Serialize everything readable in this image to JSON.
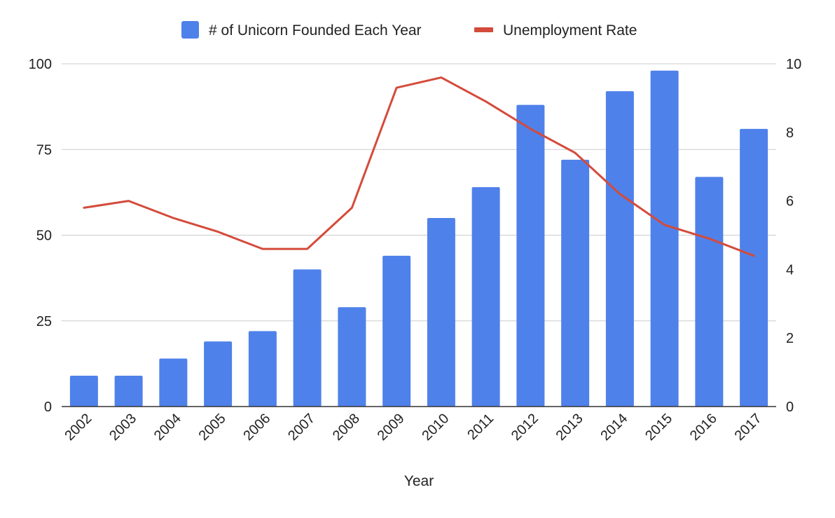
{
  "chart_data": {
    "type": "bar",
    "title": "",
    "xlabel": "Year",
    "ylabel": "",
    "ylabel_right": "",
    "categories": [
      "2002",
      "2003",
      "2004",
      "2005",
      "2006",
      "2007",
      "2008",
      "2009",
      "2010",
      "2011",
      "2012",
      "2013",
      "2014",
      "2015",
      "2016",
      "2017"
    ],
    "series": [
      {
        "name": "# of Unicorn Founded Each Year",
        "type": "bar",
        "axis": "left",
        "color": "#4f81ea",
        "values": [
          9,
          9,
          14,
          19,
          22,
          40,
          29,
          44,
          55,
          64,
          88,
          72,
          92,
          98,
          67,
          81
        ]
      },
      {
        "name": "Unemployment Rate",
        "type": "line",
        "axis": "right",
        "color": "#d44b3b",
        "values": [
          5.8,
          6.0,
          5.5,
          5.1,
          4.6,
          4.6,
          5.8,
          9.3,
          9.6,
          8.9,
          8.1,
          7.4,
          6.2,
          5.3,
          4.9,
          4.4
        ]
      }
    ],
    "ylim": [
      0,
      100
    ],
    "ylim_right": [
      0,
      10
    ],
    "yticks": [
      "0",
      "25",
      "50",
      "75",
      "100"
    ],
    "yticks_right": [
      "0",
      "2",
      "4",
      "6",
      "8",
      "10"
    ],
    "grid": true,
    "legend_position": "top"
  }
}
